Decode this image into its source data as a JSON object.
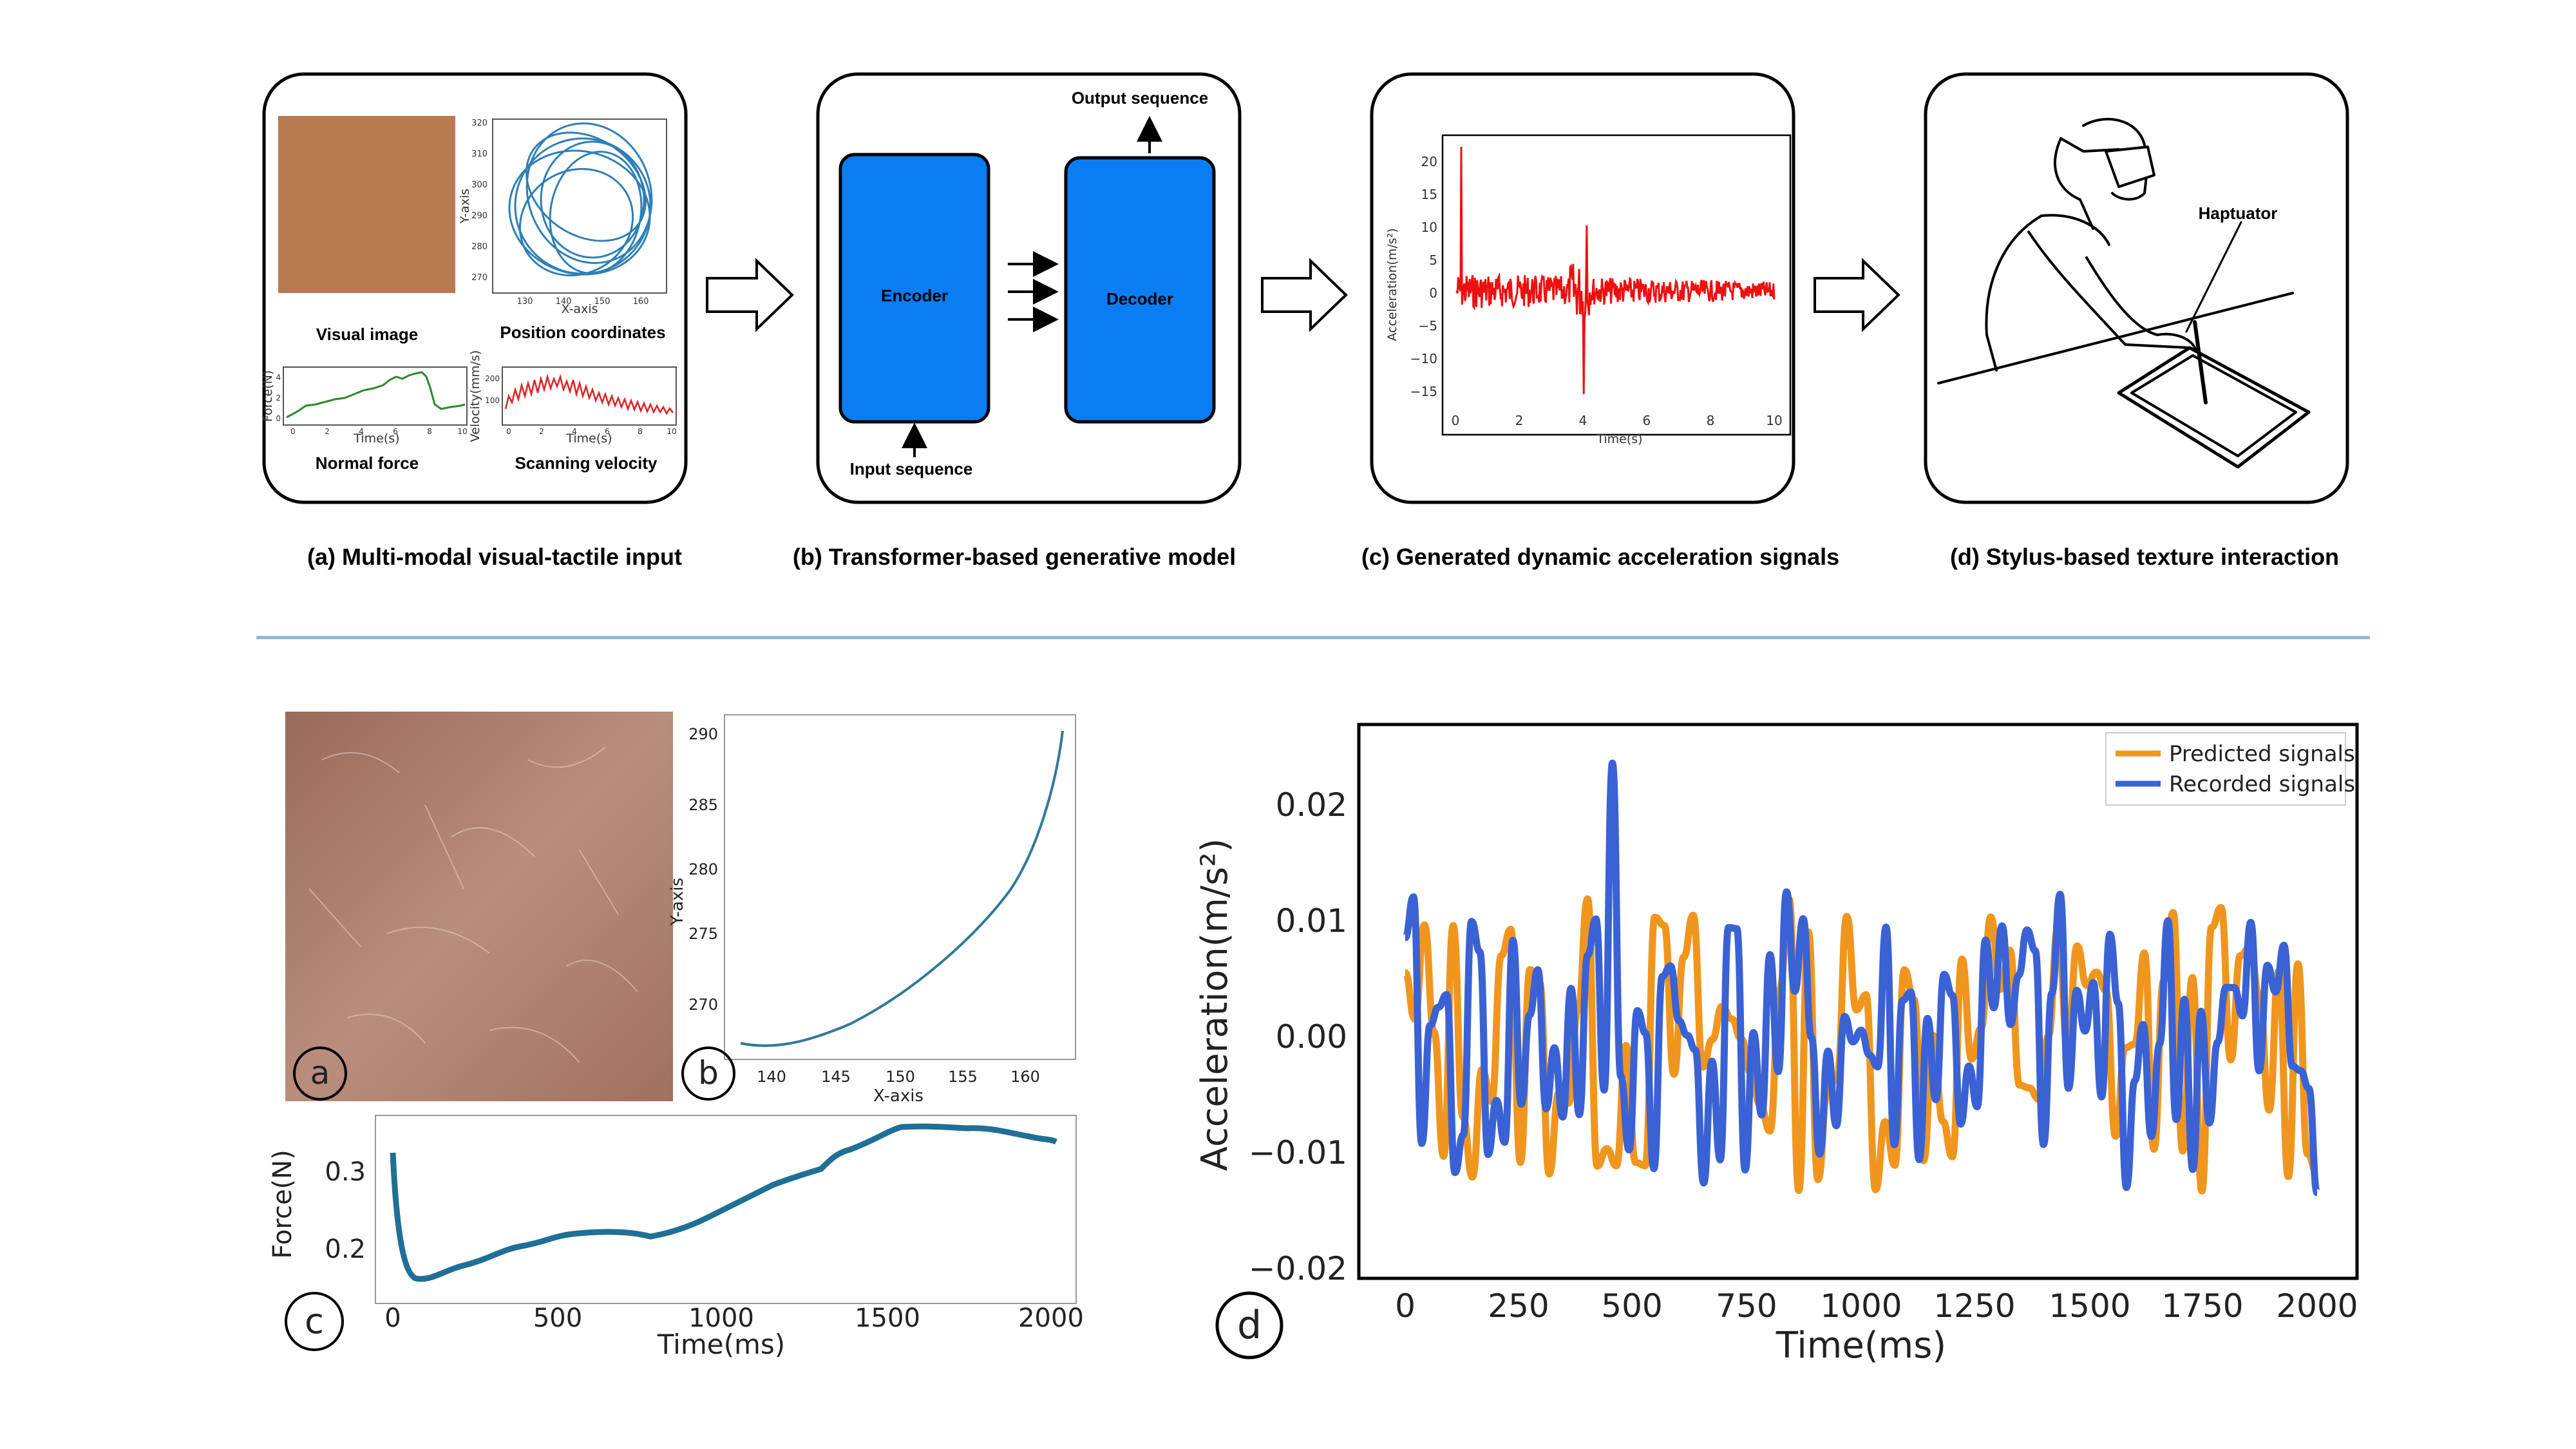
{
  "top": {
    "panel_a": {
      "caption": "(a) Multi-modal visual-tactile input",
      "visual_image_label": "Visual image",
      "position_label": "Position coordinates",
      "force_label": "Normal force",
      "velocity_label": "Scanning velocity",
      "pos_ylabel": "Y-axis",
      "pos_xlabel": "X-axis",
      "pos_yticks": [
        "320",
        "310",
        "300",
        "290",
        "280",
        "270"
      ],
      "pos_xticks": [
        "130",
        "140",
        "150",
        "160"
      ],
      "force_ylabel": "Force(N)",
      "force_xlabel": "Time(s)",
      "force_yticks": [
        "4",
        "2",
        "0"
      ],
      "force_xticks": [
        "0",
        "2",
        "4",
        "6",
        "8",
        "10"
      ],
      "vel_ylabel": "Velocity(mm/s)",
      "vel_xlabel": "Time(s)",
      "vel_yticks": [
        "200",
        "100"
      ],
      "vel_xticks": [
        "0",
        "2",
        "4",
        "6",
        "8",
        "10"
      ]
    },
    "panel_b": {
      "caption": "(b) Transformer-based generative model",
      "encoder": "Encoder",
      "decoder": "Decoder",
      "input_seq": "Input sequence",
      "output_seq": "Output sequence"
    },
    "panel_c": {
      "caption": "(c) Generated dynamic acceleration signals",
      "ylabel": "Acceleration(m/s²)",
      "xlabel": "Time(s)",
      "yticks": [
        "20",
        "15",
        "10",
        "5",
        "0",
        "−5",
        "−10",
        "−15"
      ],
      "xticks": [
        "0",
        "2",
        "4",
        "6",
        "8",
        "10"
      ]
    },
    "panel_d": {
      "caption": "(d) Stylus-based texture interaction",
      "haptuator": "Haptuator"
    }
  },
  "bottom": {
    "label_a": "a",
    "label_b": "b",
    "label_c": "c",
    "label_d": "d",
    "traj": {
      "ylabel": "Y-axis",
      "xlabel": "X-axis",
      "yticks": [
        "290",
        "285",
        "280",
        "275",
        "270"
      ],
      "xticks": [
        "140",
        "145",
        "150",
        "155",
        "160"
      ]
    },
    "force": {
      "ylabel": "Force(N)",
      "xlabel": "Time(ms)",
      "yticks": [
        "0.3",
        "0.2"
      ],
      "xticks": [
        "0",
        "500",
        "1000",
        "1500",
        "2000"
      ]
    },
    "accel": {
      "ylabel": "Acceleration(m/s²)",
      "xlabel": "Time(ms)",
      "yticks": [
        "0.02",
        "0.01",
        "0.00",
        "−0.01",
        "−0.02"
      ],
      "xticks": [
        "0",
        "250",
        "500",
        "750",
        "1000",
        "1250",
        "1500",
        "1750",
        "2000"
      ],
      "legend": [
        "Predicted signals",
        "Recorded signals"
      ]
    }
  },
  "colors": {
    "block_blue": "#0a7df5",
    "orange": "#f0961e",
    "blue_line": "#3a62d4",
    "texture": "#b97a52",
    "separator": "#8fb4d8"
  }
}
